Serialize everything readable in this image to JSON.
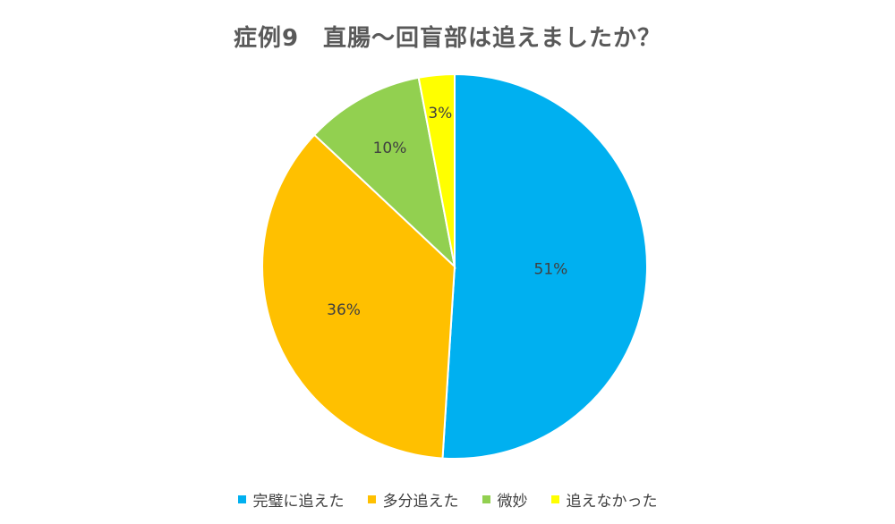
{
  "chart_data": {
    "type": "pie",
    "title": "症例9　直腸〜回盲部は追えましたか？",
    "slices": [
      {
        "label": "完璧に追えた",
        "value": 51,
        "display": "51%",
        "color": "#00B0F0"
      },
      {
        "label": "多分追えた",
        "value": 36,
        "display": "36%",
        "color": "#FFC000"
      },
      {
        "label": "微妙",
        "value": 10,
        "display": "10%",
        "color": "#92D050"
      },
      {
        "label": "追えなかった",
        "value": 3,
        "display": "3%",
        "color": "#FFFF00"
      }
    ],
    "legend_position": "bottom"
  }
}
